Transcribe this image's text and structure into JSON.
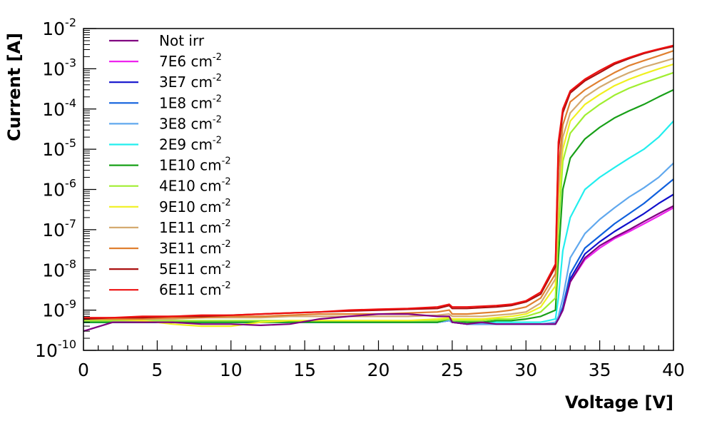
{
  "chart_data": {
    "type": "line",
    "xlabel": "Voltage [V]",
    "ylabel": "Current [A]",
    "xlim": [
      0,
      40
    ],
    "ylim": [
      1e-10,
      0.01
    ],
    "yscale": "log",
    "x_ticks": [
      0,
      5,
      10,
      15,
      20,
      25,
      30,
      35,
      40
    ],
    "y_ticks": [
      {
        "base": "10",
        "exp": "-10",
        "value": 1e-10
      },
      {
        "base": "10",
        "exp": "-9",
        "value": 1e-09
      },
      {
        "base": "10",
        "exp": "-8",
        "value": 1e-08
      },
      {
        "base": "10",
        "exp": "-7",
        "value": 1e-07
      },
      {
        "base": "10",
        "exp": "-6",
        "value": 1e-06
      },
      {
        "base": "10",
        "exp": "-5",
        "value": 1e-05
      },
      {
        "base": "10",
        "exp": "-4",
        "value": 0.0001
      },
      {
        "base": "10",
        "exp": "-3",
        "value": 0.001
      },
      {
        "base": "10",
        "exp": "-2",
        "value": 0.01
      }
    ],
    "grid": false,
    "legend_position": "top-left",
    "series": [
      {
        "name": "Not irr",
        "sup": "",
        "color": "#800080",
        "x": [
          0,
          2,
          4,
          6,
          8,
          10,
          12,
          14,
          16,
          18,
          20,
          22,
          24,
          24.8,
          25,
          26,
          27,
          28,
          29,
          30,
          31,
          32,
          32.2,
          32.5,
          33,
          34,
          35,
          36,
          37,
          38,
          39,
          40
        ],
        "y": [
          3e-10,
          5e-10,
          5e-10,
          5e-10,
          4.5e-10,
          4.5e-10,
          4.2e-10,
          4.5e-10,
          6e-10,
          7e-10,
          8e-10,
          8e-10,
          7e-10,
          7e-10,
          5e-10,
          4.5e-10,
          5e-10,
          4.5e-10,
          4.5e-10,
          4.5e-10,
          4.5e-10,
          4.5e-10,
          6e-10,
          1e-09,
          5e-09,
          2e-08,
          4e-08,
          6.5e-08,
          1e-07,
          1.6e-07,
          2.5e-07,
          3.9e-07
        ]
      },
      {
        "name": "7E6 cm",
        "sup": "-2",
        "color": "#ee22ee",
        "x": [
          0,
          2,
          4,
          6,
          8,
          10,
          12,
          14,
          16,
          18,
          20,
          22,
          24,
          24.8,
          25,
          26,
          27,
          28,
          29,
          30,
          31,
          32,
          32.2,
          32.5,
          33,
          34,
          35,
          36,
          37,
          38,
          39,
          40
        ],
        "y": [
          5e-10,
          5e-10,
          5e-10,
          5e-10,
          5e-10,
          5e-10,
          5e-10,
          5e-10,
          5e-10,
          5e-10,
          5e-10,
          5e-10,
          5e-10,
          5.5e-10,
          5e-10,
          4.5e-10,
          4.5e-10,
          4.5e-10,
          4.5e-10,
          4.5e-10,
          4.5e-10,
          4.5e-10,
          6e-10,
          1e-09,
          5e-09,
          1.8e-08,
          3.5e-08,
          6e-08,
          9e-08,
          1.4e-07,
          2.2e-07,
          3.5e-07
        ]
      },
      {
        "name": "3E7 cm",
        "sup": "-2",
        "color": "#1010cc",
        "x": [
          0,
          2,
          4,
          6,
          8,
          10,
          12,
          14,
          16,
          18,
          20,
          22,
          24,
          24.8,
          25,
          26,
          27,
          28,
          29,
          30,
          31,
          32,
          32.2,
          32.5,
          33,
          34,
          35,
          36,
          37,
          38,
          39,
          40
        ],
        "y": [
          5e-10,
          5e-10,
          5e-10,
          5e-10,
          5e-10,
          5e-10,
          5e-10,
          5e-10,
          5e-10,
          5e-10,
          5e-10,
          5e-10,
          5e-10,
          5.5e-10,
          5e-10,
          4.5e-10,
          4.5e-10,
          4.5e-10,
          4.5e-10,
          4.5e-10,
          4.5e-10,
          4.5e-10,
          6e-10,
          1e-09,
          6e-09,
          2.5e-08,
          5e-08,
          9e-08,
          1.5e-07,
          2.5e-07,
          4.5e-07,
          7.5e-07
        ]
      },
      {
        "name": "1E8 cm",
        "sup": "-2",
        "color": "#1060dd",
        "x": [
          0,
          2,
          4,
          6,
          8,
          10,
          12,
          14,
          16,
          18,
          20,
          22,
          24,
          24.8,
          25,
          26,
          27,
          28,
          29,
          30,
          31,
          32,
          32.2,
          32.5,
          33,
          34,
          35,
          36,
          37,
          38,
          39,
          40
        ],
        "y": [
          5e-10,
          5e-10,
          5e-10,
          5e-10,
          5e-10,
          5e-10,
          5e-10,
          5e-10,
          5e-10,
          5e-10,
          5e-10,
          5e-10,
          5e-10,
          5.5e-10,
          5e-10,
          4.5e-10,
          4.5e-10,
          4.5e-10,
          4.5e-10,
          4.5e-10,
          4.5e-10,
          4.5e-10,
          6e-10,
          1.2e-09,
          8e-09,
          3.5e-08,
          7e-08,
          1.4e-07,
          2.5e-07,
          4.5e-07,
          9e-07,
          1.8e-06
        ]
      },
      {
        "name": "3E8 cm",
        "sup": "-2",
        "color": "#60a8ee",
        "x": [
          0,
          2,
          4,
          6,
          8,
          10,
          12,
          14,
          16,
          18,
          20,
          22,
          24,
          24.8,
          25,
          26,
          27,
          28,
          29,
          30,
          31,
          32,
          32.2,
          32.5,
          33,
          34,
          35,
          36,
          37,
          38,
          39,
          40
        ],
        "y": [
          5e-10,
          5e-10,
          5e-10,
          5e-10,
          5e-10,
          5e-10,
          5e-10,
          5e-10,
          5e-10,
          5e-10,
          5e-10,
          5e-10,
          5e-10,
          5.5e-10,
          5e-10,
          4.5e-10,
          4.5e-10,
          4.5e-10,
          4.5e-10,
          4.5e-10,
          4.5e-10,
          5e-10,
          7e-10,
          2e-09,
          2e-08,
          8e-08,
          1.8e-07,
          3.5e-07,
          6.5e-07,
          1.1e-06,
          2e-06,
          4.5e-06
        ]
      },
      {
        "name": "2E9 cm",
        "sup": "-2",
        "color": "#22eeee",
        "x": [
          0,
          2,
          4,
          6,
          8,
          10,
          12,
          14,
          16,
          18,
          20,
          22,
          24,
          24.8,
          25,
          26,
          27,
          28,
          29,
          30,
          31,
          32,
          32.2,
          32.5,
          33,
          34,
          35,
          36,
          37,
          38,
          39,
          40
        ],
        "y": [
          5e-10,
          5e-10,
          5e-10,
          5e-10,
          5e-10,
          5e-10,
          5e-10,
          5e-10,
          5e-10,
          5e-10,
          5e-10,
          5e-10,
          5e-10,
          6e-10,
          5.5e-10,
          5e-10,
          5e-10,
          5e-10,
          5e-10,
          5e-10,
          5e-10,
          6e-10,
          2e-09,
          3e-08,
          2e-07,
          1e-06,
          2e-06,
          3.5e-06,
          6e-06,
          1e-05,
          2e-05,
          5e-05
        ]
      },
      {
        "name": "1E10 cm",
        "sup": "-2",
        "color": "#18a018",
        "x": [
          0,
          2,
          4,
          6,
          8,
          10,
          12,
          14,
          16,
          18,
          20,
          22,
          24,
          24.8,
          25,
          26,
          27,
          28,
          29,
          30,
          31,
          32,
          32.2,
          32.5,
          33,
          34,
          35,
          36,
          37,
          38,
          39,
          40
        ],
        "y": [
          5e-10,
          5e-10,
          5e-10,
          5e-10,
          5e-10,
          5e-10,
          5e-10,
          5e-10,
          5e-10,
          5e-10,
          5e-10,
          5e-10,
          5e-10,
          6e-10,
          5.5e-10,
          5e-10,
          5e-10,
          5.5e-10,
          5.5e-10,
          6e-10,
          7e-10,
          1e-09,
          2e-08,
          1e-06,
          6e-06,
          1.8e-05,
          3.5e-05,
          6e-05,
          9e-05,
          0.00013,
          0.0002,
          0.0003
        ]
      },
      {
        "name": "4E10 cm",
        "sup": "-2",
        "color": "#a0ee30",
        "x": [
          0,
          2,
          4,
          6,
          8,
          10,
          12,
          14,
          16,
          18,
          20,
          22,
          24,
          24.8,
          25,
          26,
          27,
          28,
          29,
          30,
          31,
          32,
          32.2,
          32.5,
          33,
          34,
          35,
          36,
          37,
          38,
          39,
          40
        ],
        "y": [
          5.5e-10,
          5.5e-10,
          5.5e-10,
          5.5e-10,
          5.5e-10,
          5.5e-10,
          5.5e-10,
          5.5e-10,
          5.5e-10,
          5.5e-10,
          5.5e-10,
          5.5e-10,
          5.5e-10,
          6e-10,
          5.5e-10,
          5.5e-10,
          5.5e-10,
          6e-10,
          6e-10,
          7e-10,
          9e-10,
          2e-09,
          1e-07,
          5e-06,
          2.5e-05,
          7e-05,
          0.00013,
          0.00022,
          0.00033,
          0.00045,
          0.0006,
          0.0008
        ]
      },
      {
        "name": "9E10 cm",
        "sup": "-2",
        "color": "#f0f020",
        "x": [
          0,
          2,
          4,
          6,
          8,
          10,
          12,
          14,
          16,
          18,
          20,
          22,
          24,
          24.8,
          25,
          26,
          27,
          28,
          29,
          30,
          31,
          32,
          32.2,
          32.5,
          33,
          34,
          35,
          36,
          37,
          38,
          39,
          40
        ],
        "y": [
          6e-10,
          6e-10,
          5.5e-10,
          4.5e-10,
          4e-10,
          4e-10,
          5e-10,
          5.5e-10,
          5.5e-10,
          5.5e-10,
          5.5e-10,
          5.5e-10,
          6e-10,
          6.5e-10,
          6e-10,
          6e-10,
          6e-10,
          6.5e-10,
          7e-10,
          8e-10,
          1.2e-09,
          4e-09,
          5e-07,
          1e-05,
          5e-05,
          0.00013,
          0.00023,
          0.00038,
          0.00055,
          0.00075,
          0.001,
          0.0013
        ]
      },
      {
        "name": "1E11 cm",
        "sup": "-2",
        "color": "#d4aa70",
        "x": [
          0,
          2,
          4,
          6,
          8,
          10,
          12,
          14,
          16,
          18,
          20,
          22,
          24,
          24.8,
          25,
          26,
          27,
          28,
          29,
          30,
          31,
          32,
          32.2,
          32.5,
          33,
          34,
          35,
          36,
          37,
          38,
          39,
          40
        ],
        "y": [
          6e-10,
          6e-10,
          6e-10,
          6e-10,
          6.5e-10,
          6.5e-10,
          6.5e-10,
          7e-10,
          7e-10,
          7e-10,
          7e-10,
          7e-10,
          7.5e-10,
          8e-10,
          7e-10,
          7e-10,
          7e-10,
          7.5e-10,
          8e-10,
          9e-10,
          1.5e-09,
          6e-09,
          1e-06,
          2e-05,
          8e-05,
          0.0002,
          0.00035,
          0.00055,
          0.0008,
          0.0011,
          0.0014,
          0.0018
        ]
      },
      {
        "name": "3E11 cm",
        "sup": "-2",
        "color": "#e08030",
        "x": [
          0,
          2,
          4,
          6,
          8,
          10,
          12,
          14,
          16,
          18,
          20,
          22,
          24,
          24.8,
          25,
          26,
          27,
          28,
          29,
          30,
          31,
          32,
          32.2,
          32.5,
          33,
          34,
          35,
          36,
          37,
          38,
          39,
          40
        ],
        "y": [
          6e-10,
          6e-10,
          6e-10,
          6.5e-10,
          6.5e-10,
          7e-10,
          7e-10,
          7.5e-10,
          8e-10,
          8e-10,
          8e-10,
          8.5e-10,
          9e-10,
          1e-09,
          8e-10,
          8e-10,
          8.5e-10,
          9e-10,
          1e-09,
          1.2e-09,
          2e-09,
          8e-09,
          3e-06,
          4e-05,
          0.00015,
          0.0003,
          0.0005,
          0.0008,
          0.0012,
          0.0016,
          0.0021,
          0.0028
        ]
      },
      {
        "name": "5E11 cm",
        "sup": "-2",
        "color": "#aa1010",
        "x": [
          0,
          2,
          4,
          6,
          8,
          10,
          12,
          14,
          16,
          18,
          20,
          22,
          24,
          24.8,
          25,
          26,
          27,
          28,
          29,
          30,
          31,
          32,
          32.2,
          32.5,
          33,
          34,
          35,
          36,
          37,
          38,
          39,
          40
        ],
        "y": [
          6e-10,
          6.5e-10,
          6.5e-10,
          7e-10,
          7e-10,
          7.5e-10,
          8e-10,
          8.5e-10,
          9e-10,
          9.5e-10,
          1e-09,
          1.05e-09,
          1.1e-09,
          1.3e-09,
          1.1e-09,
          1.1e-09,
          1.15e-09,
          1.2e-09,
          1.3e-09,
          1.6e-09,
          2.5e-09,
          1.2e-08,
          1e-05,
          8e-05,
          0.00025,
          0.0005,
          0.0008,
          0.0013,
          0.0018,
          0.0024,
          0.003,
          0.0036
        ]
      },
      {
        "name": "6E11 cm",
        "sup": "-2",
        "color": "#ee1010",
        "x": [
          0,
          2,
          4,
          6,
          8,
          10,
          12,
          14,
          16,
          18,
          20,
          22,
          24,
          24.8,
          25,
          26,
          27,
          28,
          29,
          30,
          31,
          32,
          32.2,
          32.5,
          33,
          34,
          35,
          36,
          37,
          38,
          39,
          40
        ],
        "y": [
          6.5e-10,
          6.5e-10,
          7e-10,
          7e-10,
          7.5e-10,
          7.5e-10,
          8e-10,
          8.5e-10,
          9e-10,
          1e-09,
          1.05e-09,
          1.1e-09,
          1.2e-09,
          1.4e-09,
          1.2e-09,
          1.2e-09,
          1.25e-09,
          1.3e-09,
          1.4e-09,
          1.7e-09,
          2.8e-09,
          1.4e-08,
          1.5e-05,
          0.0001,
          0.00028,
          0.00055,
          0.0009,
          0.0014,
          0.0019,
          0.0025,
          0.0031,
          0.0038
        ]
      }
    ]
  }
}
